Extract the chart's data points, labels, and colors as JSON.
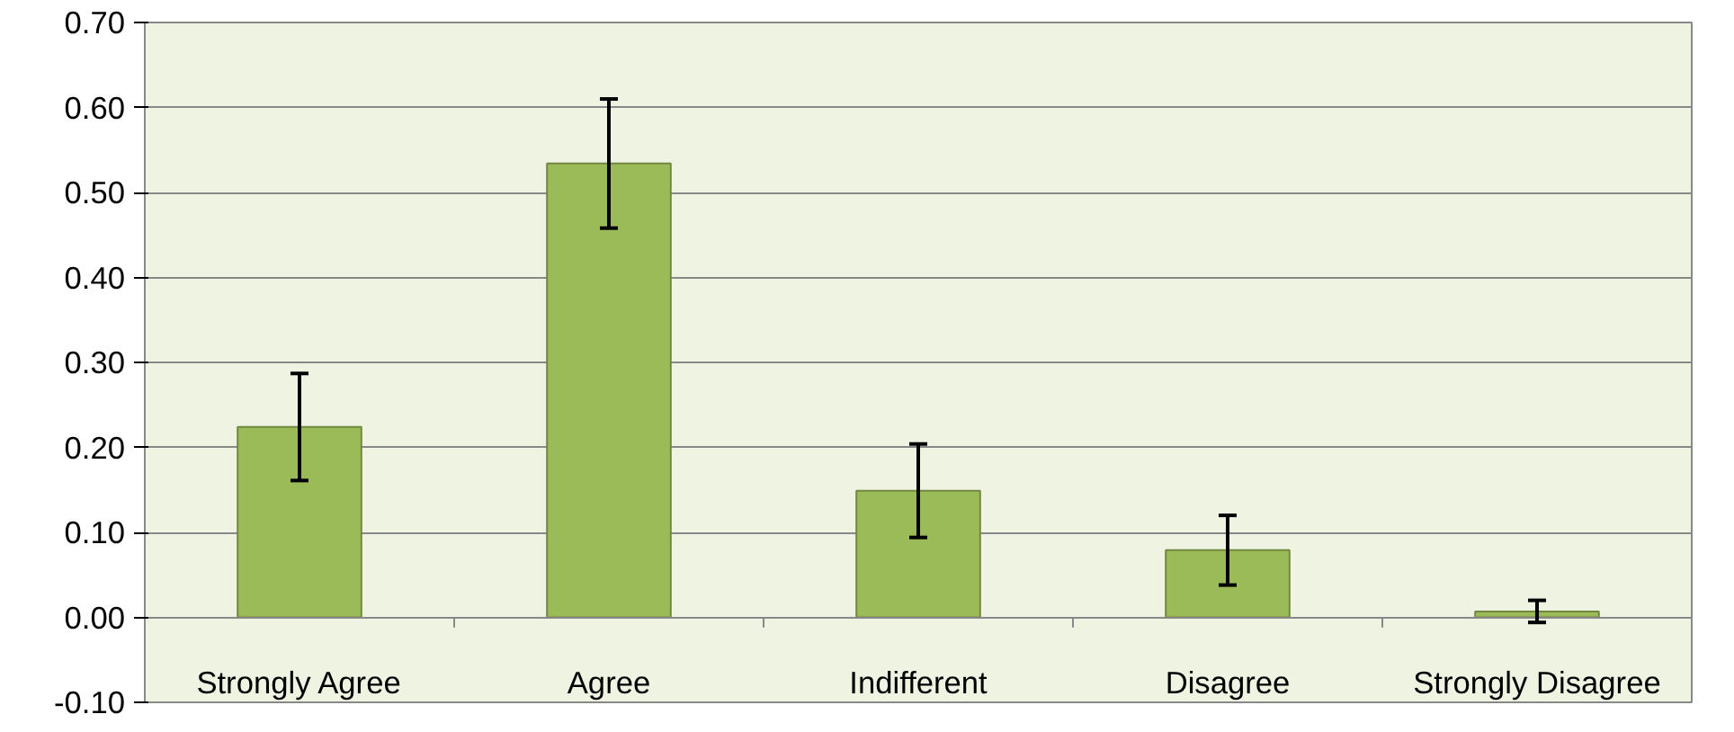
{
  "chart_data": {
    "type": "bar",
    "categories": [
      "Strongly Agree",
      "Agree",
      "Indifferent",
      "Disagree",
      "Strongly Disagree"
    ],
    "values": [
      0.224,
      0.534,
      0.149,
      0.079,
      0.007
    ],
    "errors": [
      0.063,
      0.076,
      0.055,
      0.041,
      0.013
    ],
    "color": "#9bbb59",
    "ylim": [
      -0.1,
      0.7
    ],
    "yticks": [
      {
        "value": -0.1,
        "label": "-0.10"
      },
      {
        "value": 0,
        "label": "0.00"
      },
      {
        "value": 0.1,
        "label": "0.10"
      },
      {
        "value": 0.2,
        "label": "0.20"
      },
      {
        "value": 0.3,
        "label": "0.30"
      },
      {
        "value": 0.4,
        "label": "0.40"
      },
      {
        "value": 0.5,
        "label": "0.50"
      },
      {
        "value": 0.6,
        "label": "0.60"
      },
      {
        "value": 0.7,
        "label": "0.70"
      }
    ],
    "grid": "y"
  }
}
